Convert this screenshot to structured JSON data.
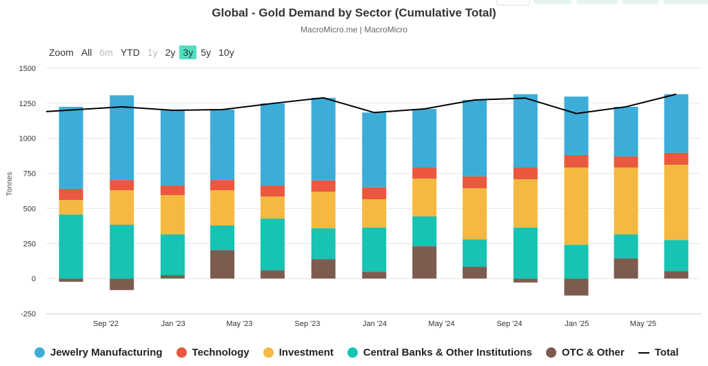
{
  "title": "Global - Gold Demand by Sector (Cumulative Total)",
  "subtitle": "MacroMicro.me | MacroMicro",
  "range_selector": {
    "label": "Zoom",
    "options": [
      {
        "label": "All",
        "state": "enabled"
      },
      {
        "label": "6m",
        "state": "disabled"
      },
      {
        "label": "YTD",
        "state": "enabled"
      },
      {
        "label": "1y",
        "state": "disabled"
      },
      {
        "label": "2y",
        "state": "enabled"
      },
      {
        "label": "3y",
        "state": "selected"
      },
      {
        "label": "5y",
        "state": "enabled"
      },
      {
        "label": "10y",
        "state": "enabled"
      }
    ]
  },
  "chart_data": {
    "type": "bar",
    "stacked": true,
    "title": "Global - Gold Demand by Sector (Cumulative Total)",
    "ylabel": "Tonnes",
    "xlabel": "",
    "ylim": [
      -250,
      1500
    ],
    "yticks": [
      -250,
      0,
      250,
      500,
      750,
      1000,
      1250,
      1500
    ],
    "xlim": [
      "2022-05-16",
      "2025-08-14"
    ],
    "xticks": [
      {
        "date": "2022-09-01",
        "label": "Sep '22"
      },
      {
        "date": "2023-01-01",
        "label": "Jan '23"
      },
      {
        "date": "2023-05-01",
        "label": "May '23"
      },
      {
        "date": "2023-09-01",
        "label": "Sep '23"
      },
      {
        "date": "2024-01-01",
        "label": "Jan '24"
      },
      {
        "date": "2024-05-01",
        "label": "May '24"
      },
      {
        "date": "2024-09-01",
        "label": "Sep '24"
      },
      {
        "date": "2025-01-01",
        "label": "Jan '25"
      },
      {
        "date": "2025-05-01",
        "label": "May '25"
      }
    ],
    "grid": true,
    "legend_position": "bottom",
    "x": [
      "2022-06-30",
      "2022-09-30",
      "2022-12-31",
      "2023-03-31",
      "2023-06-30",
      "2023-09-30",
      "2023-12-31",
      "2024-03-31",
      "2024-06-30",
      "2024-09-30",
      "2024-12-31",
      "2025-03-31",
      "2025-06-30"
    ],
    "series": [
      {
        "name": "Jewelry Manufacturing",
        "color": "#3cadd9",
        "values": [
          585,
          604,
          536,
          502,
          585,
          589,
          533,
          418,
          545,
          523,
          417,
          354,
          418
        ]
      },
      {
        "name": "Technology",
        "color": "#e9583f",
        "values": [
          80,
          73,
          69,
          73,
          79,
          80,
          85,
          79,
          85,
          84,
          89,
          79,
          85
        ]
      },
      {
        "name": "Investment",
        "color": "#f5b942",
        "values": [
          103,
          246,
          280,
          251,
          157,
          261,
          202,
          270,
          364,
          344,
          551,
          477,
          537
        ]
      },
      {
        "name": "Central Banks & Other Institutions",
        "color": "#17c3b2",
        "values": [
          457,
          384,
          290,
          177,
          369,
          221,
          315,
          212,
          196,
          364,
          241,
          172,
          221
        ]
      },
      {
        "name": "OTC & Other",
        "color": "#7d5c50",
        "values": [
          -23,
          -82,
          25,
          202,
          59,
          138,
          49,
          231,
          84,
          -28,
          -121,
          143,
          54
        ]
      }
    ],
    "line": {
      "name": "Total",
      "color": "#000000",
      "values": [
        1202,
        1225,
        1200,
        1205,
        1249,
        1289,
        1184,
        1210,
        1274,
        1287,
        1177,
        1225,
        1315
      ]
    }
  }
}
